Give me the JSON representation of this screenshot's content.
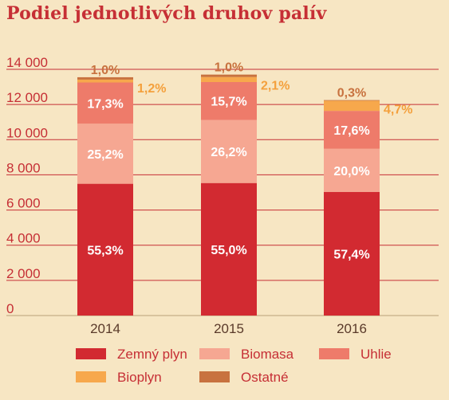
{
  "title": "Podiel jednotlivých druhov palív",
  "chart_data": {
    "type": "bar",
    "stacked": true,
    "categories": [
      "2014",
      "2015",
      "2016"
    ],
    "ylim": [
      0,
      14000
    ],
    "yticks": [
      "0",
      "2 000",
      "4 000",
      "6 000",
      "8 000",
      "10 000",
      "12 000",
      "14 000"
    ],
    "totals": [
      13550,
      13700,
      12250
    ],
    "legend_position": "bottom",
    "grid": true,
    "series": [
      {
        "name": "Zemný plyn",
        "color": "#d22a31",
        "text_color": "#ffffff",
        "label_position": "inside",
        "labels": [
          "55,3%",
          "55,0%",
          "57,4%"
        ],
        "values": [
          7493,
          7535,
          7032
        ]
      },
      {
        "name": "Biomasa",
        "color": "#f6a792",
        "text_color": "#ffffff",
        "label_position": "inside",
        "labels": [
          "25,2%",
          "26,2%",
          "20,0%"
        ],
        "values": [
          3415,
          3589,
          2450
        ]
      },
      {
        "name": "Uhlie",
        "color": "#ee7b6a",
        "text_color": "#ffffff",
        "label_position": "inside",
        "labels": [
          "17,3%",
          "15,7%",
          "17,6%"
        ],
        "values": [
          2344,
          2151,
          2156
        ]
      },
      {
        "name": "Bioplyn",
        "color": "#f7a84c",
        "text_color": "#f4a03c",
        "label_position": "right",
        "labels": [
          "1,2%",
          "2,1%",
          "4,7%"
        ],
        "values": [
          163,
          288,
          576
        ]
      },
      {
        "name": "Ostatné",
        "color": "#c8723f",
        "text_color": "#c8723f",
        "label_position": "above",
        "labels": [
          "1,0%",
          "1,0%",
          "0,3%"
        ],
        "values": [
          136,
          137,
          37
        ]
      }
    ]
  }
}
